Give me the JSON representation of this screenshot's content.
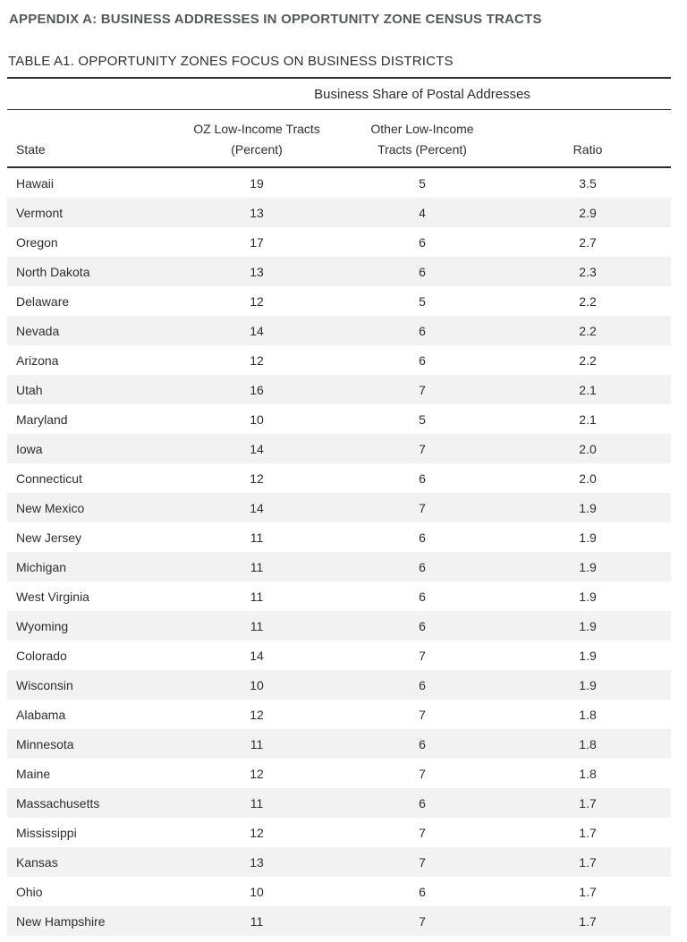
{
  "page": {
    "appendix_title": "APPENDIX A: BUSINESS ADDRESSES IN OPPORTUNITY ZONE CENSUS TRACTS",
    "table_title": "TABLE A1. OPPORTUNITY ZONES FOCUS ON BUSINESS DISTRICTS"
  },
  "table": {
    "span_header": "Business Share of Postal Addresses",
    "col_headers": {
      "state": "State",
      "oz_line1": "OZ Low-Income Tracts",
      "oz_line2": "(Percent)",
      "other_line1": "Other Low-Income",
      "other_line2": "Tracts (Percent)",
      "ratio": "Ratio"
    },
    "row_keys": [
      "state",
      "oz",
      "other",
      "ratio"
    ],
    "rows": [
      {
        "state": "Hawaii",
        "oz": 19,
        "other": 5,
        "ratio": "3.5"
      },
      {
        "state": "Vermont",
        "oz": 13,
        "other": 4,
        "ratio": "2.9"
      },
      {
        "state": "Oregon",
        "oz": 17,
        "other": 6,
        "ratio": "2.7"
      },
      {
        "state": "North Dakota",
        "oz": 13,
        "other": 6,
        "ratio": "2.3"
      },
      {
        "state": "Delaware",
        "oz": 12,
        "other": 5,
        "ratio": "2.2"
      },
      {
        "state": "Nevada",
        "oz": 14,
        "other": 6,
        "ratio": "2.2"
      },
      {
        "state": "Arizona",
        "oz": 12,
        "other": 6,
        "ratio": "2.2"
      },
      {
        "state": "Utah",
        "oz": 16,
        "other": 7,
        "ratio": "2.1"
      },
      {
        "state": "Maryland",
        "oz": 10,
        "other": 5,
        "ratio": "2.1"
      },
      {
        "state": "Iowa",
        "oz": 14,
        "other": 7,
        "ratio": "2.0"
      },
      {
        "state": "Connecticut",
        "oz": 12,
        "other": 6,
        "ratio": "2.0"
      },
      {
        "state": "New Mexico",
        "oz": 14,
        "other": 7,
        "ratio": "1.9"
      },
      {
        "state": "New Jersey",
        "oz": 11,
        "other": 6,
        "ratio": "1.9"
      },
      {
        "state": "Michigan",
        "oz": 11,
        "other": 6,
        "ratio": "1.9"
      },
      {
        "state": "West Virginia",
        "oz": 11,
        "other": 6,
        "ratio": "1.9"
      },
      {
        "state": "Wyoming",
        "oz": 11,
        "other": 6,
        "ratio": "1.9"
      },
      {
        "state": "Colorado",
        "oz": 14,
        "other": 7,
        "ratio": "1.9"
      },
      {
        "state": "Wisconsin",
        "oz": 10,
        "other": 6,
        "ratio": "1.9"
      },
      {
        "state": "Alabama",
        "oz": 12,
        "other": 7,
        "ratio": "1.8"
      },
      {
        "state": "Minnesota",
        "oz": 11,
        "other": 6,
        "ratio": "1.8"
      },
      {
        "state": "Maine",
        "oz": 12,
        "other": 7,
        "ratio": "1.8"
      },
      {
        "state": "Massachusetts",
        "oz": 11,
        "other": 6,
        "ratio": "1.7"
      },
      {
        "state": "Mississippi",
        "oz": 12,
        "other": 7,
        "ratio": "1.7"
      },
      {
        "state": "Kansas",
        "oz": 13,
        "other": 7,
        "ratio": "1.7"
      },
      {
        "state": "Ohio",
        "oz": 10,
        "other": 6,
        "ratio": "1.7"
      },
      {
        "state": "New Hampshire",
        "oz": 11,
        "other": 7,
        "ratio": "1.7"
      }
    ],
    "colors": {
      "stripe": "#f2f2f2",
      "rule": "#2e2e2e",
      "appendix_title_gray": "#54585a",
      "text": "#2e2e2e"
    }
  }
}
